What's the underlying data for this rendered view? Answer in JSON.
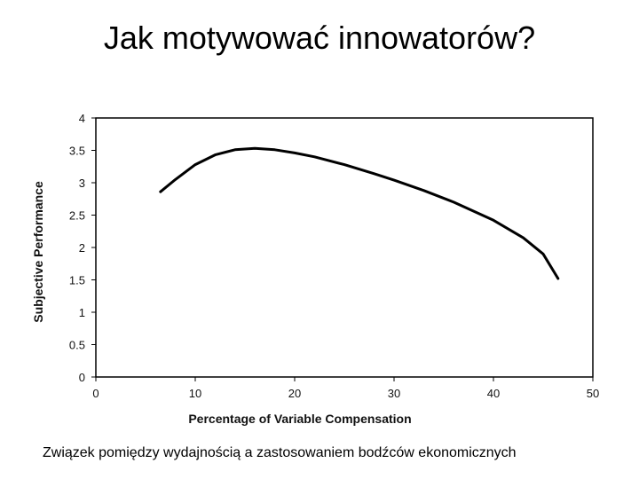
{
  "slide": {
    "title": "Jak motywować innowatorów?",
    "caption": "Związek pomiędzy wydajnością a zastosowaniem bodźców ekonomicznych"
  },
  "chart_data": {
    "type": "line",
    "xlabel": "Percentage of Variable Compensation",
    "ylabel": "Subjective Performance",
    "xlim": [
      0,
      50
    ],
    "ylim": [
      0,
      4
    ],
    "xticks": [
      "0",
      "10",
      "20",
      "30",
      "40",
      "50"
    ],
    "yticks": [
      "0",
      "0.5",
      "1",
      "1.5",
      "2",
      "2.5",
      "3",
      "3.5",
      "4"
    ],
    "grid": false,
    "series": [
      {
        "x": [
          6.5,
          8,
          10,
          12,
          14,
          16,
          18,
          20,
          22,
          25,
          28,
          30,
          33,
          36,
          40,
          43,
          45,
          46.5
        ],
        "y": [
          2.86,
          3.05,
          3.28,
          3.43,
          3.51,
          3.53,
          3.51,
          3.46,
          3.4,
          3.28,
          3.14,
          3.04,
          2.88,
          2.7,
          2.42,
          2.15,
          1.9,
          1.52
        ]
      }
    ],
    "line_color": "#000000"
  }
}
